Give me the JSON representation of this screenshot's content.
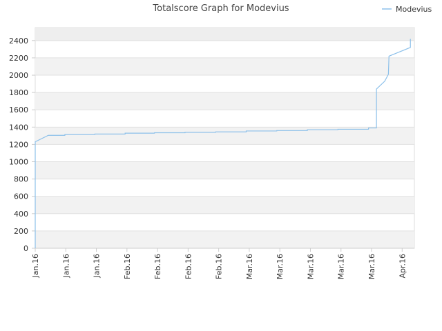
{
  "chart_data": {
    "type": "line",
    "title": "Totalscore Graph for Modevius",
    "x": [
      0,
      0,
      0.43,
      0.97,
      0.97,
      1.95,
      1.95,
      2.94,
      2.94,
      3.9,
      3.9,
      4.9,
      4.9,
      5.9,
      5.9,
      6.9,
      6.9,
      7.9,
      7.9,
      8.9,
      8.9,
      9.9,
      9.9,
      10.9,
      10.9,
      11.16,
      11.16,
      11.43,
      11.55,
      11.57,
      12.27,
      12.27
    ],
    "series": [
      {
        "name": "Modevius",
        "color": "#8cc0ea",
        "values": [
          0,
          1230,
          1305,
          1305,
          1315,
          1315,
          1320,
          1320,
          1330,
          1330,
          1335,
          1335,
          1340,
          1340,
          1345,
          1345,
          1355,
          1355,
          1360,
          1360,
          1370,
          1370,
          1375,
          1375,
          1390,
          1390,
          1840,
          1930,
          2010,
          2220,
          2320,
          2420
        ]
      }
    ],
    "xlim": [
      0,
      12.4
    ],
    "xticks": [
      {
        "value": 0,
        "label": "Jan.16"
      },
      {
        "value": 1,
        "label": "Jan.16"
      },
      {
        "value": 2,
        "label": "Jan.16"
      },
      {
        "value": 3,
        "label": "Feb.16"
      },
      {
        "value": 4,
        "label": "Feb.16"
      },
      {
        "value": 5,
        "label": "Feb.16"
      },
      {
        "value": 6,
        "label": "Feb.16"
      },
      {
        "value": 7,
        "label": "Mar.16"
      },
      {
        "value": 8,
        "label": "Mar.16"
      },
      {
        "value": 9,
        "label": "Mar.16"
      },
      {
        "value": 10,
        "label": "Mar.16"
      },
      {
        "value": 11,
        "label": "Mar.16"
      },
      {
        "value": 12,
        "label": "Apr.16"
      }
    ],
    "ylim": [
      0,
      2550
    ],
    "yticks": [
      0,
      200,
      400,
      600,
      800,
      1000,
      1200,
      1400,
      1600,
      1800,
      2000,
      2200,
      2400
    ],
    "grid": true,
    "legend": "top-right"
  }
}
